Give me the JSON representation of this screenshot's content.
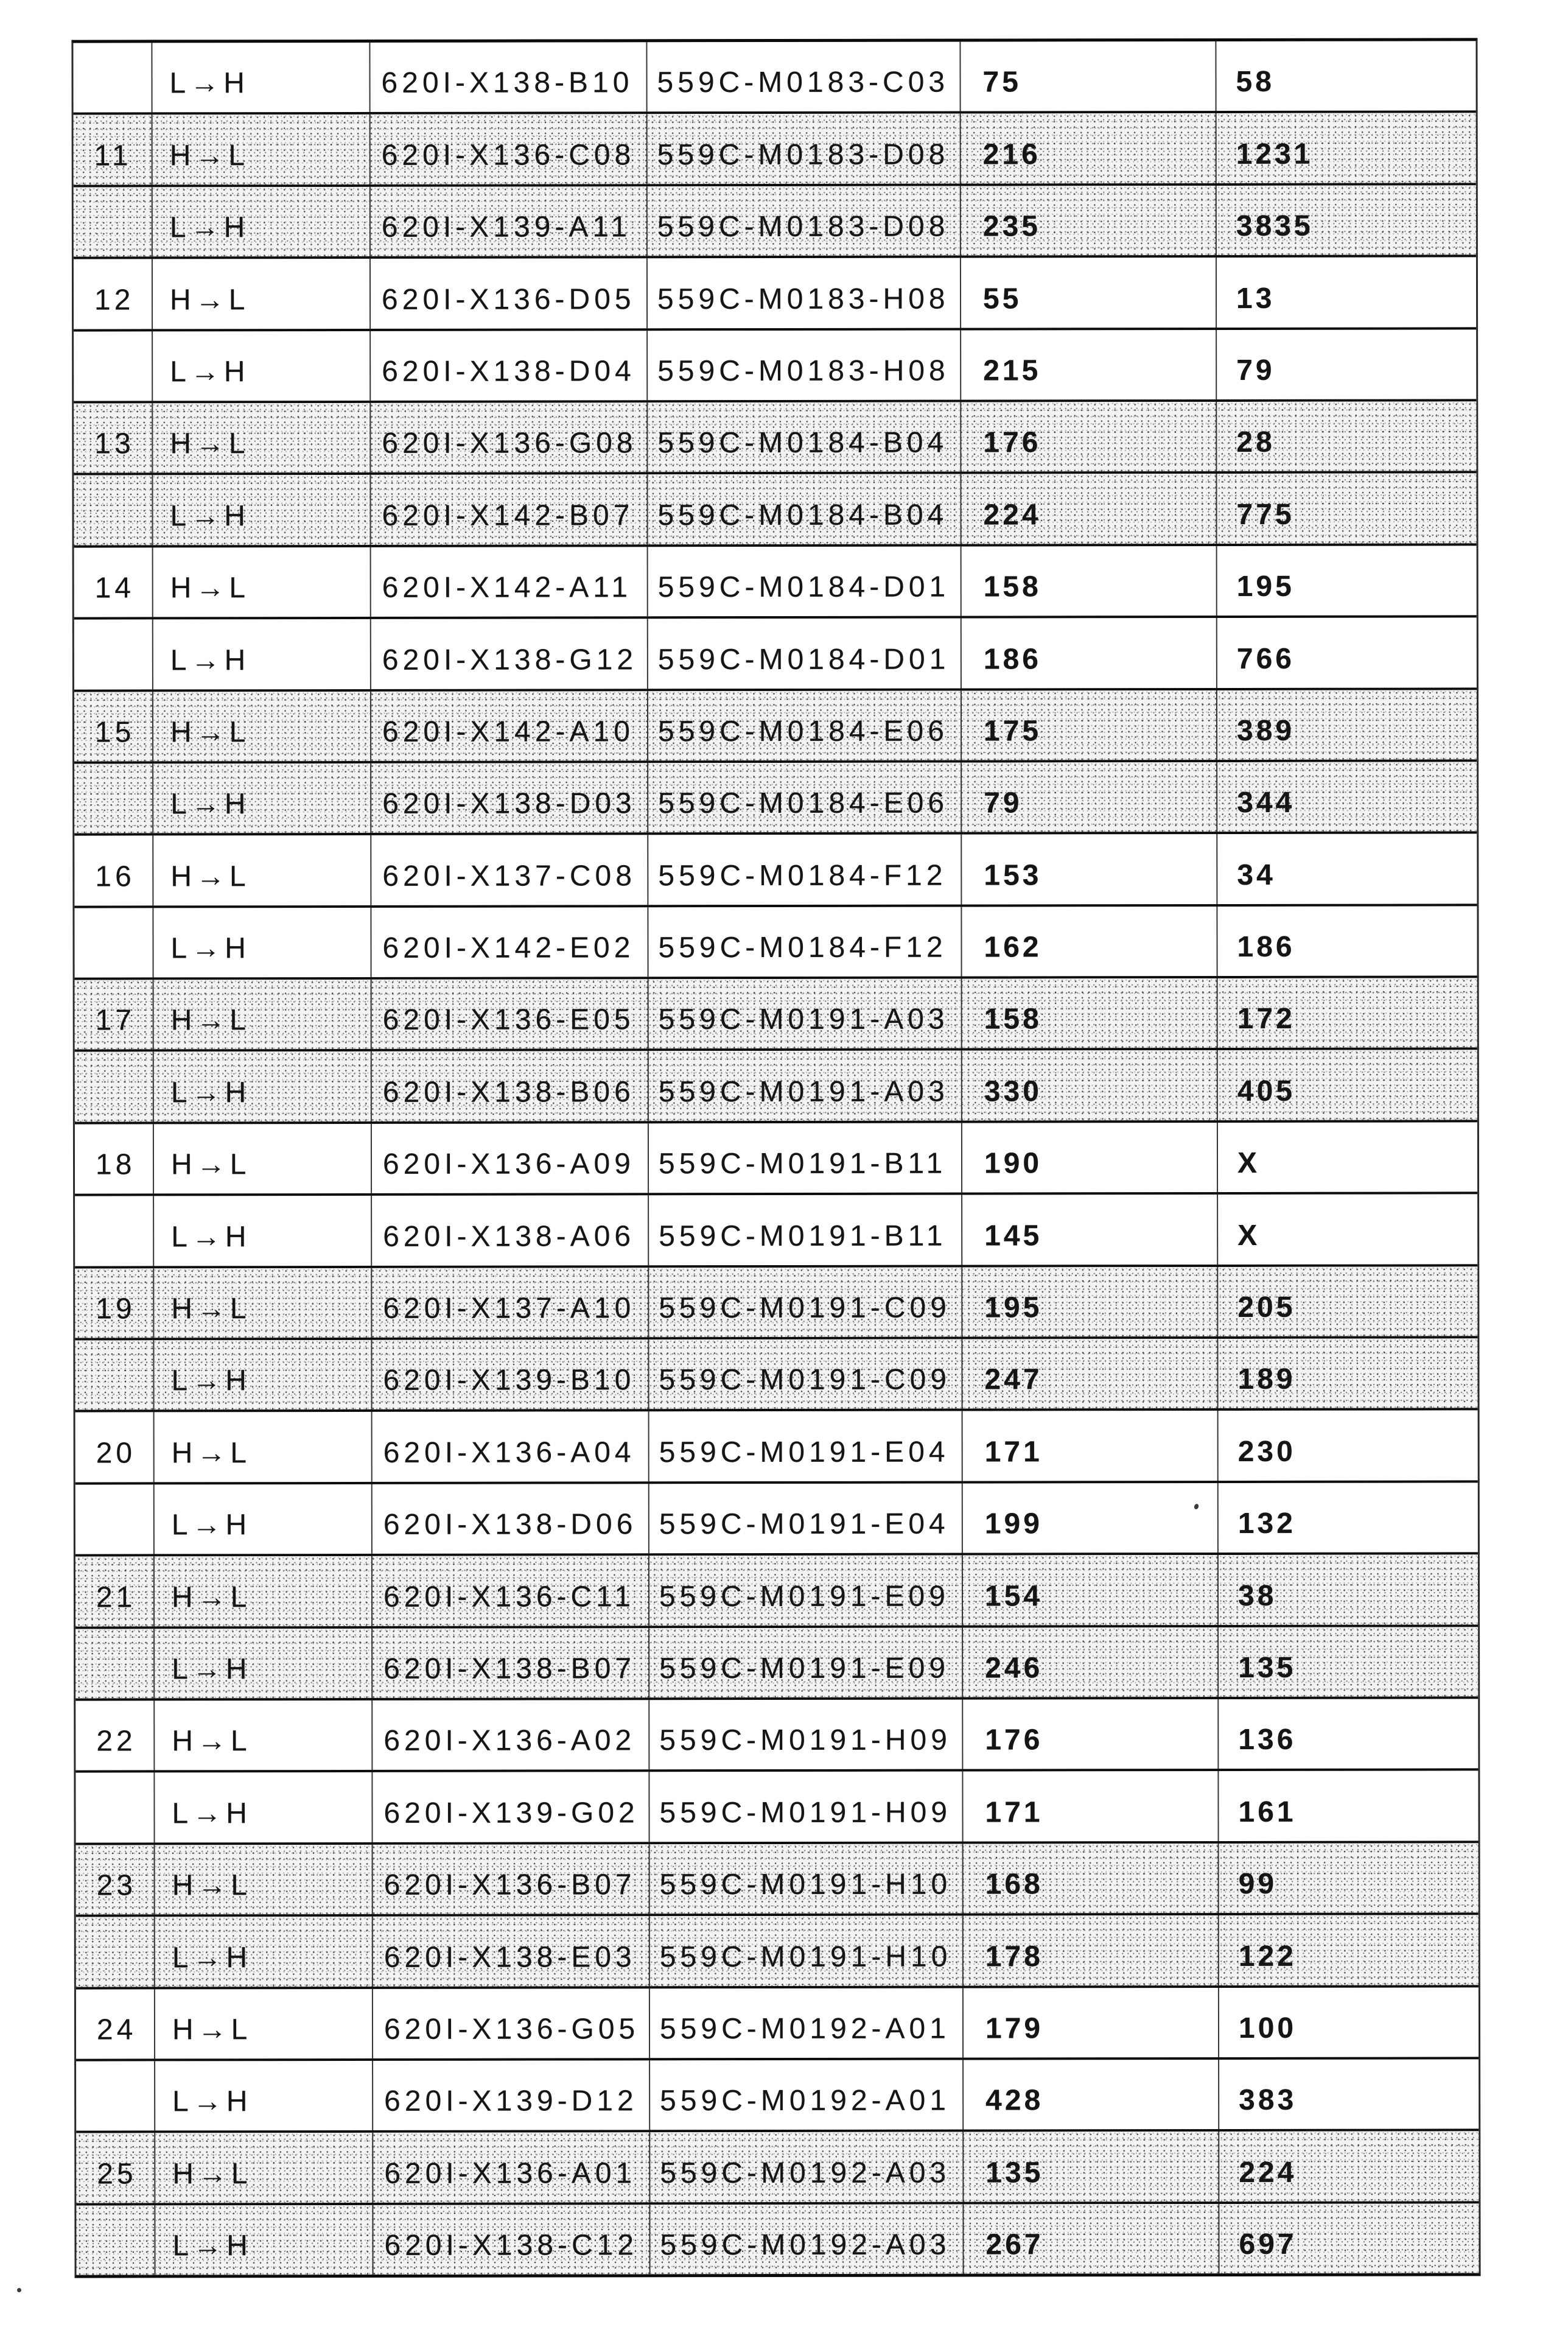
{
  "table": {
    "rows": [
      {
        "num": "",
        "dir": "L→H",
        "id1": "620I-X138-B10",
        "id2": "559C-M0183-C03",
        "v1": "75",
        "v2": "58",
        "shaded": false
      },
      {
        "num": "11",
        "dir": "H→L",
        "id1": "620I-X136-C08",
        "id2": "559C-M0183-D08",
        "v1": "216",
        "v2": "1231",
        "shaded": true
      },
      {
        "num": "",
        "dir": "L→H",
        "id1": "620I-X139-A11",
        "id2": "559C-M0183-D08",
        "v1": "235",
        "v2": "3835",
        "shaded": true
      },
      {
        "num": "12",
        "dir": "H→L",
        "id1": "620I-X136-D05",
        "id2": "559C-M0183-H08",
        "v1": "55",
        "v2": "13",
        "shaded": false
      },
      {
        "num": "",
        "dir": "L→H",
        "id1": "620I-X138-D04",
        "id2": "559C-M0183-H08",
        "v1": "215",
        "v2": "79",
        "shaded": false
      },
      {
        "num": "13",
        "dir": "H→L",
        "id1": "620I-X136-G08",
        "id2": "559C-M0184-B04",
        "v1": "176",
        "v2": "28",
        "shaded": true
      },
      {
        "num": "",
        "dir": "L→H",
        "id1": "620I-X142-B07",
        "id2": "559C-M0184-B04",
        "v1": "224",
        "v2": "775",
        "shaded": true
      },
      {
        "num": "14",
        "dir": "H→L",
        "id1": "620I-X142-A11",
        "id2": "559C-M0184-D01",
        "v1": "158",
        "v2": "195",
        "shaded": false
      },
      {
        "num": "",
        "dir": "L→H",
        "id1": "620I-X138-G12",
        "id2": "559C-M0184-D01",
        "v1": "186",
        "v2": "766",
        "shaded": false
      },
      {
        "num": "15",
        "dir": "H→L",
        "id1": "620I-X142-A10",
        "id2": "559C-M0184-E06",
        "v1": "175",
        "v2": "389",
        "shaded": true
      },
      {
        "num": "",
        "dir": "L→H",
        "id1": "620I-X138-D03",
        "id2": "559C-M0184-E06",
        "v1": "79",
        "v2": "344",
        "shaded": true
      },
      {
        "num": "16",
        "dir": "H→L",
        "id1": "620I-X137-C08",
        "id2": "559C-M0184-F12",
        "v1": "153",
        "v2": "34",
        "shaded": false
      },
      {
        "num": "",
        "dir": "L→H",
        "id1": "620I-X142-E02",
        "id2": "559C-M0184-F12",
        "v1": "162",
        "v2": "186",
        "shaded": false
      },
      {
        "num": "17",
        "dir": "H→L",
        "id1": "620I-X136-E05",
        "id2": "559C-M0191-A03",
        "v1": "158",
        "v2": "172",
        "shaded": true
      },
      {
        "num": "",
        "dir": "L→H",
        "id1": "620I-X138-B06",
        "id2": "559C-M0191-A03",
        "v1": "330",
        "v2": "405",
        "shaded": true
      },
      {
        "num": "18",
        "dir": "H→L",
        "id1": "620I-X136-A09",
        "id2": "559C-M0191-B11",
        "v1": "190",
        "v2": "X",
        "shaded": false
      },
      {
        "num": "",
        "dir": "L→H",
        "id1": "620I-X138-A06",
        "id2": "559C-M0191-B11",
        "v1": "145",
        "v2": "X",
        "shaded": false
      },
      {
        "num": "19",
        "dir": "H→L",
        "id1": "620I-X137-A10",
        "id2": "559C-M0191-C09",
        "v1": "195",
        "v2": "205",
        "shaded": true
      },
      {
        "num": "",
        "dir": "L→H",
        "id1": "620I-X139-B10",
        "id2": "559C-M0191-C09",
        "v1": "247",
        "v2": "189",
        "shaded": true
      },
      {
        "num": "20",
        "dir": "H→L",
        "id1": "620I-X136-A04",
        "id2": "559C-M0191-E04",
        "v1": "171",
        "v2": "230",
        "shaded": false
      },
      {
        "num": "",
        "dir": "L→H",
        "id1": "620I-X138-D06",
        "id2": "559C-M0191-E04",
        "v1": "199",
        "v2": "132",
        "shaded": false
      },
      {
        "num": "21",
        "dir": "H→L",
        "id1": "620I-X136-C11",
        "id2": "559C-M0191-E09",
        "v1": "154",
        "v2": "38",
        "shaded": true
      },
      {
        "num": "",
        "dir": "L→H",
        "id1": "620I-X138-B07",
        "id2": "559C-M0191-E09",
        "v1": "246",
        "v2": "135",
        "shaded": true
      },
      {
        "num": "22",
        "dir": "H→L",
        "id1": "620I-X136-A02",
        "id2": "559C-M0191-H09",
        "v1": "176",
        "v2": "136",
        "shaded": false
      },
      {
        "num": "",
        "dir": "L→H",
        "id1": "620I-X139-G02",
        "id2": "559C-M0191-H09",
        "v1": "171",
        "v2": "161",
        "shaded": false
      },
      {
        "num": "23",
        "dir": "H→L",
        "id1": "620I-X136-B07",
        "id2": "559C-M0191-H10",
        "v1": "168",
        "v2": "99",
        "shaded": true
      },
      {
        "num": "",
        "dir": "L→H",
        "id1": "620I-X138-E03",
        "id2": "559C-M0191-H10",
        "v1": "178",
        "v2": "122",
        "shaded": true
      },
      {
        "num": "24",
        "dir": "H→L",
        "id1": "620I-X136-G05",
        "id2": "559C-M0192-A01",
        "v1": "179",
        "v2": "100",
        "shaded": false
      },
      {
        "num": "",
        "dir": "L→H",
        "id1": "620I-X139-D12",
        "id2": "559C-M0192-A01",
        "v1": "428",
        "v2": "383",
        "shaded": false
      },
      {
        "num": "25",
        "dir": "H→L",
        "id1": "620I-X136-A01",
        "id2": "559C-M0192-A03",
        "v1": "135",
        "v2": "224",
        "shaded": true
      },
      {
        "num": "",
        "dir": "L→H",
        "id1": "620I-X138-C12",
        "id2": "559C-M0192-A03",
        "v1": "267",
        "v2": "697",
        "shaded": true
      }
    ]
  },
  "styling": {
    "shaded_row_color": "#f3f3f3",
    "rule_color": "#0d0d0d",
    "text_color": "#151515"
  }
}
